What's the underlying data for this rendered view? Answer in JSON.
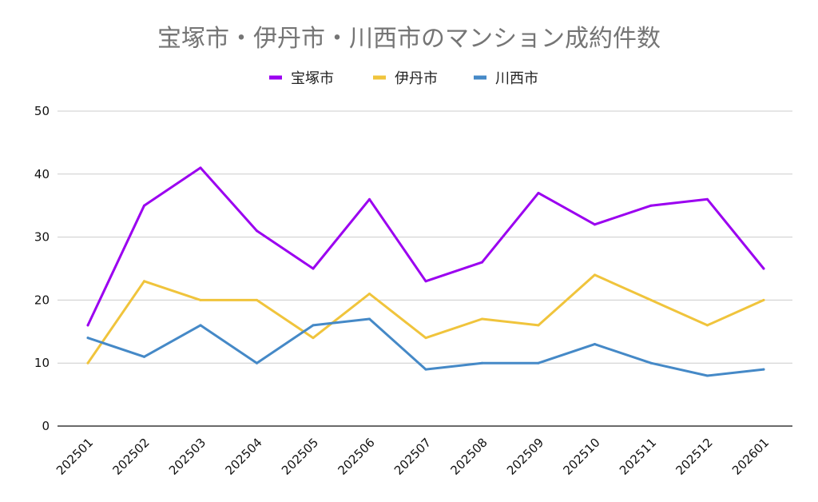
{
  "chart_data": {
    "type": "line",
    "title": "宝塚市・伊丹市・川西市のマンション成約件数",
    "xlabel": "",
    "ylabel": "",
    "ylim": [
      0,
      50
    ],
    "yticks": [
      0,
      10,
      20,
      30,
      40,
      50
    ],
    "grid": true,
    "legend_position": "top",
    "categories": [
      "202501",
      "202502",
      "202503",
      "202504",
      "202505",
      "202506",
      "202507",
      "202508",
      "202509",
      "202510",
      "202511",
      "202512",
      "202601"
    ],
    "series": [
      {
        "name": "宝塚市",
        "color": "#9b00f0",
        "values": [
          16,
          35,
          41,
          31,
          25,
          36,
          23,
          26,
          37,
          32,
          35,
          36,
          25
        ]
      },
      {
        "name": "伊丹市",
        "color": "#f0c43c",
        "values": [
          10,
          23,
          20,
          20,
          14,
          21,
          14,
          17,
          16,
          24,
          20,
          16,
          20
        ]
      },
      {
        "name": "川西市",
        "color": "#4589c7",
        "values": [
          14,
          11,
          16,
          10,
          16,
          17,
          9,
          10,
          10,
          13,
          10,
          8,
          9
        ]
      }
    ]
  }
}
